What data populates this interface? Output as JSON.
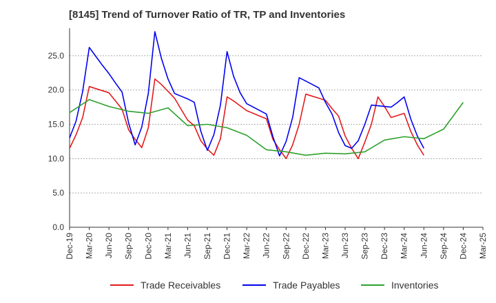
{
  "chart_data": {
    "type": "line",
    "title": "[8145]  Trend of Turnover Ratio of TR, TP and Inventories",
    "xlabel": "",
    "ylabel": "",
    "ylim": [
      0,
      29
    ],
    "yticks": [
      "0.0",
      "5.0",
      "10.0",
      "15.0",
      "20.0",
      "25.0"
    ],
    "x_labels": [
      "Dec-19",
      "Mar-20",
      "Jun-20",
      "Sep-20",
      "Dec-20",
      "Mar-21",
      "Jun-21",
      "Sep-21",
      "Dec-21",
      "Mar-22",
      "Jun-22",
      "Sep-22",
      "Dec-22",
      "Mar-23",
      "Jun-23",
      "Sep-23",
      "Dec-23",
      "Mar-24",
      "Jun-24",
      "Sep-24",
      "Dec-24",
      "Mar-25"
    ],
    "grid": true,
    "legend_position": "bottom",
    "series": [
      {
        "name": "Trade Receivables",
        "color": "#e31a1c",
        "values": [
          11.5,
          13.5,
          16.0,
          20.5,
          20.2,
          19.9,
          19.6,
          18.4,
          17.2,
          14.2,
          12.8,
          11.6,
          14.5,
          21.6,
          20.8,
          19.8,
          18.8,
          17.2,
          15.6,
          14.8,
          12.6,
          11.4,
          10.5,
          12.9,
          19.0,
          18.4,
          17.7,
          17.0,
          16.6,
          16.2,
          15.8,
          12.8,
          11.3,
          10.0,
          12.0,
          15.0,
          19.4,
          19.1,
          18.8,
          18.5,
          17.3,
          16.2,
          13.3,
          11.5,
          10.0,
          12.4,
          15.0,
          19.0,
          17.6,
          16.0,
          16.3,
          16.6,
          14.0,
          12.0,
          10.5
        ],
        "start_index": 0
      },
      {
        "name": "Trade Payables",
        "color": "#0000ee",
        "values": [
          13.0,
          15.5,
          19.8,
          26.2,
          24.9,
          23.6,
          22.4,
          21.0,
          19.7,
          15.2,
          12.0,
          14.6,
          19.5,
          28.5,
          24.6,
          21.6,
          19.5,
          19.1,
          18.7,
          18.2,
          14.0,
          11.2,
          13.5,
          17.8,
          25.6,
          22.0,
          19.6,
          18.0,
          17.5,
          17.0,
          16.5,
          13.2,
          10.4,
          12.5,
          16.0,
          21.8,
          21.3,
          20.8,
          20.3,
          18.2,
          16.5,
          13.8,
          11.9,
          11.5,
          12.6,
          15.0,
          17.8,
          17.7,
          17.6,
          17.5,
          18.2,
          19.0,
          15.8,
          13.3,
          11.5
        ],
        "start_index": 0
      },
      {
        "name": "Inventories",
        "color": "#2ca02c",
        "values": [
          16.7,
          18.6,
          17.6,
          16.9,
          16.6,
          17.4,
          14.8,
          15.0,
          14.5,
          13.4,
          11.3,
          11.0,
          10.5,
          10.8,
          10.7,
          11.0,
          12.7,
          13.2,
          12.9,
          14.3,
          18.2
        ],
        "start_index": 0,
        "step": 3
      }
    ]
  }
}
